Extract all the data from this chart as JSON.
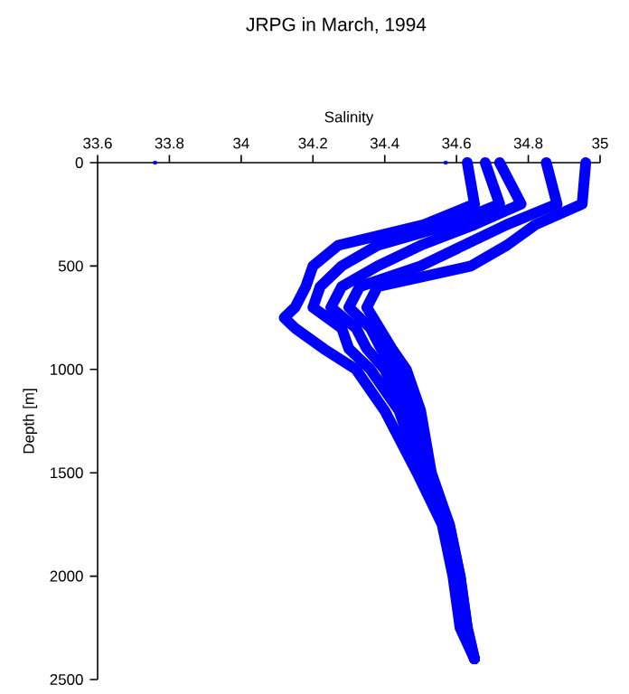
{
  "chart_data": {
    "type": "line",
    "title": "JRPG in March, 1994",
    "xlabel": "Salinity",
    "ylabel": "Depth [m]",
    "series": [
      {
        "color": "#0000ff",
        "x": [
          34.96,
          34.95,
          34.82,
          34.74,
          34.64,
          34.38,
          34.35,
          34.42,
          34.46,
          34.5,
          34.53,
          34.58,
          34.61,
          34.63,
          34.65
        ],
        "values": [
          0,
          200,
          300,
          400,
          500,
          600,
          700,
          900,
          1000,
          1200,
          1500,
          1750,
          2000,
          2250,
          2400
        ]
      },
      {
        "color": "#0000ff",
        "x": [
          34.72,
          34.78,
          34.65,
          34.5,
          34.38,
          34.28,
          34.25,
          34.32,
          34.35,
          34.4,
          34.45,
          34.51,
          34.57,
          34.6,
          34.62,
          34.65
        ],
        "values": [
          0,
          200,
          300,
          400,
          500,
          600,
          700,
          800,
          900,
          1000,
          1200,
          1500,
          1750,
          2000,
          2250,
          2400
        ]
      },
      {
        "color": "#0000ff",
        "x": [
          34.63,
          34.65,
          34.51,
          34.27,
          34.2,
          34.18,
          34.15,
          34.12,
          34.15,
          34.23,
          34.32,
          34.4,
          34.49,
          34.56,
          34.59,
          34.61,
          34.65
        ],
        "values": [
          0,
          200,
          300,
          400,
          500,
          600,
          700,
          750,
          800,
          900,
          1000,
          1200,
          1500,
          1750,
          2000,
          2250,
          2400
        ]
      },
      {
        "color": "#0000ff",
        "x": [
          34.68,
          34.72,
          34.58,
          34.38,
          34.28,
          34.22,
          34.2,
          34.28,
          34.3,
          34.36,
          34.44,
          34.5,
          34.57,
          34.6,
          34.62,
          34.65
        ],
        "values": [
          0,
          200,
          300,
          400,
          500,
          600,
          700,
          800,
          900,
          1000,
          1200,
          1500,
          1750,
          2000,
          2250,
          2400
        ]
      },
      {
        "color": "#0000ff",
        "x": [
          34.85,
          34.88,
          34.74,
          34.62,
          34.5,
          34.33,
          34.3,
          34.36,
          34.39,
          34.43,
          34.48,
          34.52,
          34.58,
          34.61,
          34.63,
          34.65
        ],
        "values": [
          0,
          200,
          300,
          400,
          500,
          600,
          700,
          800,
          900,
          1000,
          1200,
          1500,
          1750,
          2000,
          2250,
          2400
        ]
      },
      {
        "type": "scatter",
        "color": "#0000ff",
        "x": [
          33.76,
          34.57
        ],
        "values": [
          0,
          0
        ]
      }
    ],
    "xlim": [
      33.6,
      35
    ],
    "ylim": [
      2500,
      0
    ],
    "xticks": [
      33.6,
      33.8,
      34,
      34.2,
      34.4,
      34.6,
      34.8,
      35
    ],
    "yticks": [
      0,
      500,
      1000,
      1500,
      2000,
      2500
    ],
    "line_style": "solid"
  }
}
